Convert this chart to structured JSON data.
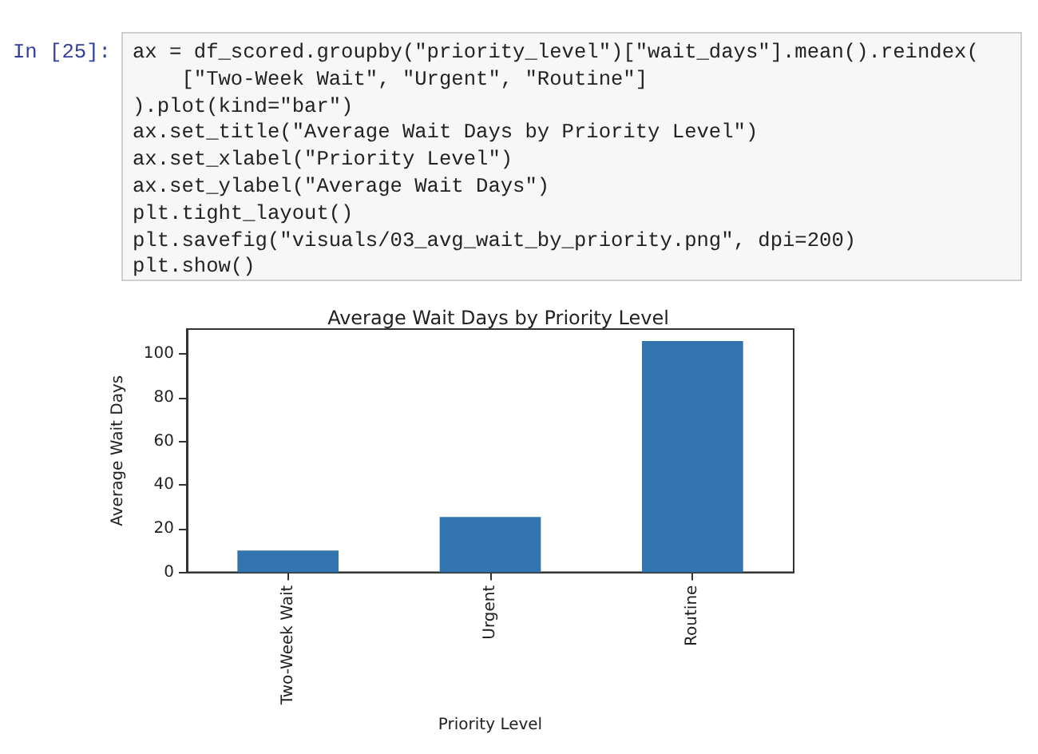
{
  "chart_data": {
    "type": "bar",
    "title": "Average Wait Days by Priority Level",
    "xlabel": "Priority Level",
    "ylabel": "Average Wait Days",
    "categories": [
      "Two-Week Wait",
      "Urgent",
      "Routine"
    ],
    "values": [
      10,
      25.4,
      106
    ],
    "color": "#3274b0",
    "ylim": [
      0,
      111.5
    ],
    "yticks": [
      0,
      20,
      40,
      60,
      80,
      100
    ],
    "grid": false,
    "annotations": [
      "In [25]:",
      "ax = df_scored.groupby(\"priority_level\")[\"wait_days\"].mean().reindex(",
      "    [\"Two-Week Wait\", \"Urgent\", \"Routine\"]",
      ").plot(kind=\"bar\")",
      "ax.set_title(\"Average Wait Days by Priority Level\")",
      "ax.set_xlabel(\"Priority Level\")",
      "ax.set_ylabel(\"Average Wait Days\")",
      "plt.tight_layout()",
      "plt.savefig(\"visuals/03_avg_wait_by_priority.png\", dpi=200)",
      "plt.show()"
    ]
  }
}
